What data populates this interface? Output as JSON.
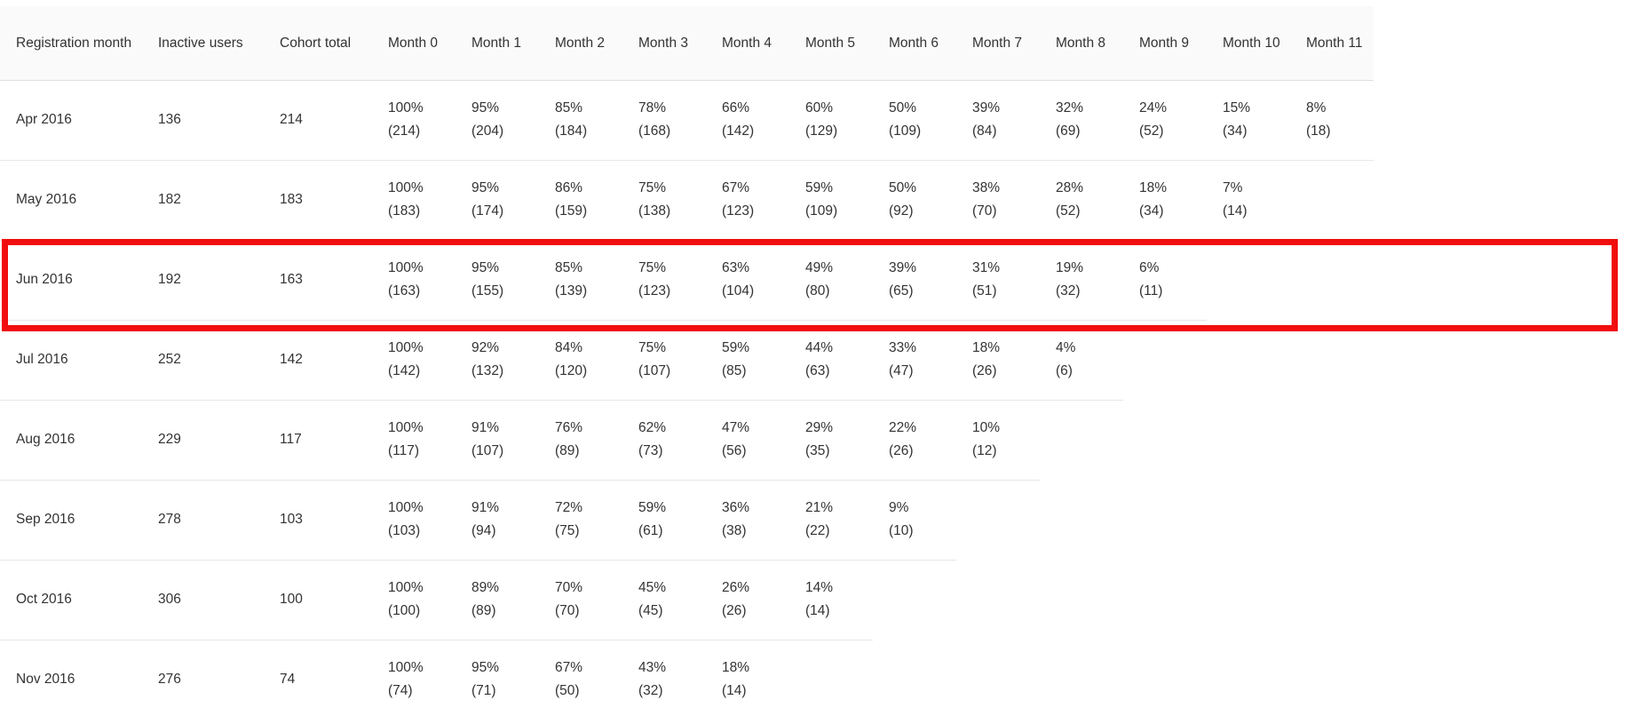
{
  "table": {
    "headers": [
      "Registration month",
      "Inactive users",
      "Cohort total",
      "Month 0",
      "Month 1",
      "Month 2",
      "Month 3",
      "Month 4",
      "Month 5",
      "Month 6",
      "Month 7",
      "Month 8",
      "Month 9",
      "Month 10",
      "Month 11"
    ],
    "rows": [
      {
        "registration_month": "Apr 2016",
        "inactive_users": "136",
        "cohort_total": "214",
        "months": [
          {
            "pct": "100%",
            "count": "(214)"
          },
          {
            "pct": "95%",
            "count": "(204)"
          },
          {
            "pct": "85%",
            "count": "(184)"
          },
          {
            "pct": "78%",
            "count": "(168)"
          },
          {
            "pct": "66%",
            "count": "(142)"
          },
          {
            "pct": "60%",
            "count": "(129)"
          },
          {
            "pct": "50%",
            "count": "(109)"
          },
          {
            "pct": "39%",
            "count": "(84)"
          },
          {
            "pct": "32%",
            "count": "(69)"
          },
          {
            "pct": "24%",
            "count": "(52)"
          },
          {
            "pct": "15%",
            "count": "(34)"
          },
          {
            "pct": "8%",
            "count": "(18)"
          }
        ],
        "highlighted": false
      },
      {
        "registration_month": "May 2016",
        "inactive_users": "182",
        "cohort_total": "183",
        "months": [
          {
            "pct": "100%",
            "count": "(183)"
          },
          {
            "pct": "95%",
            "count": "(174)"
          },
          {
            "pct": "86%",
            "count": "(159)"
          },
          {
            "pct": "75%",
            "count": "(138)"
          },
          {
            "pct": "67%",
            "count": "(123)"
          },
          {
            "pct": "59%",
            "count": "(109)"
          },
          {
            "pct": "50%",
            "count": "(92)"
          },
          {
            "pct": "38%",
            "count": "(70)"
          },
          {
            "pct": "28%",
            "count": "(52)"
          },
          {
            "pct": "18%",
            "count": "(34)"
          },
          {
            "pct": "7%",
            "count": "(14)"
          }
        ],
        "highlighted": false
      },
      {
        "registration_month": "Jun 2016",
        "inactive_users": "192",
        "cohort_total": "163",
        "months": [
          {
            "pct": "100%",
            "count": "(163)"
          },
          {
            "pct": "95%",
            "count": "(155)"
          },
          {
            "pct": "85%",
            "count": "(139)"
          },
          {
            "pct": "75%",
            "count": "(123)"
          },
          {
            "pct": "63%",
            "count": "(104)"
          },
          {
            "pct": "49%",
            "count": "(80)"
          },
          {
            "pct": "39%",
            "count": "(65)"
          },
          {
            "pct": "31%",
            "count": "(51)"
          },
          {
            "pct": "19%",
            "count": "(32)"
          },
          {
            "pct": "6%",
            "count": "(11)"
          }
        ],
        "highlighted": true
      },
      {
        "registration_month": "Jul 2016",
        "inactive_users": "252",
        "cohort_total": "142",
        "months": [
          {
            "pct": "100%",
            "count": "(142)"
          },
          {
            "pct": "92%",
            "count": "(132)"
          },
          {
            "pct": "84%",
            "count": "(120)"
          },
          {
            "pct": "75%",
            "count": "(107)"
          },
          {
            "pct": "59%",
            "count": "(85)"
          },
          {
            "pct": "44%",
            "count": "(63)"
          },
          {
            "pct": "33%",
            "count": "(47)"
          },
          {
            "pct": "18%",
            "count": "(26)"
          },
          {
            "pct": "4%",
            "count": "(6)"
          }
        ],
        "highlighted": false
      },
      {
        "registration_month": "Aug 2016",
        "inactive_users": "229",
        "cohort_total": "117",
        "months": [
          {
            "pct": "100%",
            "count": "(117)"
          },
          {
            "pct": "91%",
            "count": "(107)"
          },
          {
            "pct": "76%",
            "count": "(89)"
          },
          {
            "pct": "62%",
            "count": "(73)"
          },
          {
            "pct": "47%",
            "count": "(56)"
          },
          {
            "pct": "29%",
            "count": "(35)"
          },
          {
            "pct": "22%",
            "count": "(26)"
          },
          {
            "pct": "10%",
            "count": "(12)"
          }
        ],
        "highlighted": false
      },
      {
        "registration_month": "Sep 2016",
        "inactive_users": "278",
        "cohort_total": "103",
        "months": [
          {
            "pct": "100%",
            "count": "(103)"
          },
          {
            "pct": "91%",
            "count": "(94)"
          },
          {
            "pct": "72%",
            "count": "(75)"
          },
          {
            "pct": "59%",
            "count": "(61)"
          },
          {
            "pct": "36%",
            "count": "(38)"
          },
          {
            "pct": "21%",
            "count": "(22)"
          },
          {
            "pct": "9%",
            "count": "(10)"
          }
        ],
        "highlighted": false
      },
      {
        "registration_month": "Oct 2016",
        "inactive_users": "306",
        "cohort_total": "100",
        "months": [
          {
            "pct": "100%",
            "count": "(100)"
          },
          {
            "pct": "89%",
            "count": "(89)"
          },
          {
            "pct": "70%",
            "count": "(70)"
          },
          {
            "pct": "45%",
            "count": "(45)"
          },
          {
            "pct": "26%",
            "count": "(26)"
          },
          {
            "pct": "14%",
            "count": "(14)"
          }
        ],
        "highlighted": false
      },
      {
        "registration_month": "Nov 2016",
        "inactive_users": "276",
        "cohort_total": "74",
        "months": [
          {
            "pct": "100%",
            "count": "(74)"
          },
          {
            "pct": "95%",
            "count": "(71)"
          },
          {
            "pct": "67%",
            "count": "(50)"
          },
          {
            "pct": "43%",
            "count": "(32)"
          },
          {
            "pct": "18%",
            "count": "(14)"
          }
        ],
        "highlighted": false
      }
    ],
    "month_column_count": 12
  },
  "annotation": {
    "type": "red-highlight-box",
    "highlights_row": "Jun 2016",
    "color": "#f10e0e"
  },
  "colors": {
    "header_bg": "#fafafa",
    "row_border": "#e7e7e7",
    "text": "#333333",
    "background": "#ffffff"
  }
}
